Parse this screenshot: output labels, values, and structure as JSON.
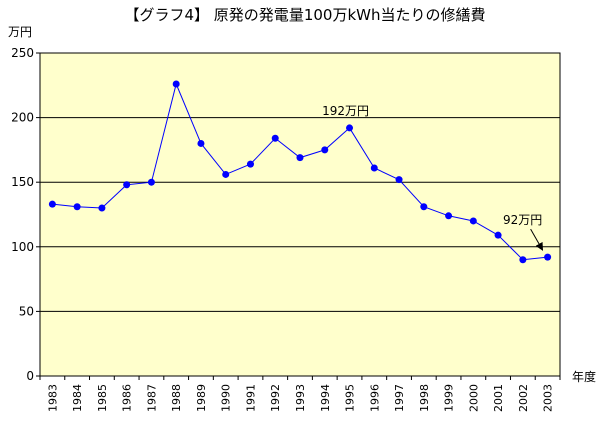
{
  "chart_data": {
    "type": "line",
    "title": "【グラフ4】 原発の発電量100万kWh当たりの修繕費",
    "ylabel": "万円",
    "xlabel": "年度",
    "ylim": [
      0,
      250
    ],
    "yticks": [
      0,
      50,
      100,
      150,
      200,
      250
    ],
    "grid": true,
    "plot_background": "#ffffcc",
    "series_color": "#0000ff",
    "series": [
      {
        "x": [
          "1983",
          "1984",
          "1985",
          "1986",
          "1987",
          "1988",
          "1989",
          "1990",
          "1991",
          "1992",
          "1993",
          "1994",
          "1995",
          "1996",
          "1997",
          "1998",
          "1999",
          "2000",
          "2001",
          "2002",
          "2003"
        ],
        "values": [
          133,
          131,
          130,
          148,
          150,
          226,
          180,
          156,
          164,
          184,
          169,
          175,
          192,
          161,
          152,
          131,
          124,
          120,
          109,
          90,
          92
        ]
      }
    ],
    "annotations": [
      {
        "text": "192万円",
        "x": "1995",
        "y": 192
      },
      {
        "text": "92万円",
        "x": "2003",
        "y": 92,
        "arrow": true
      }
    ]
  }
}
